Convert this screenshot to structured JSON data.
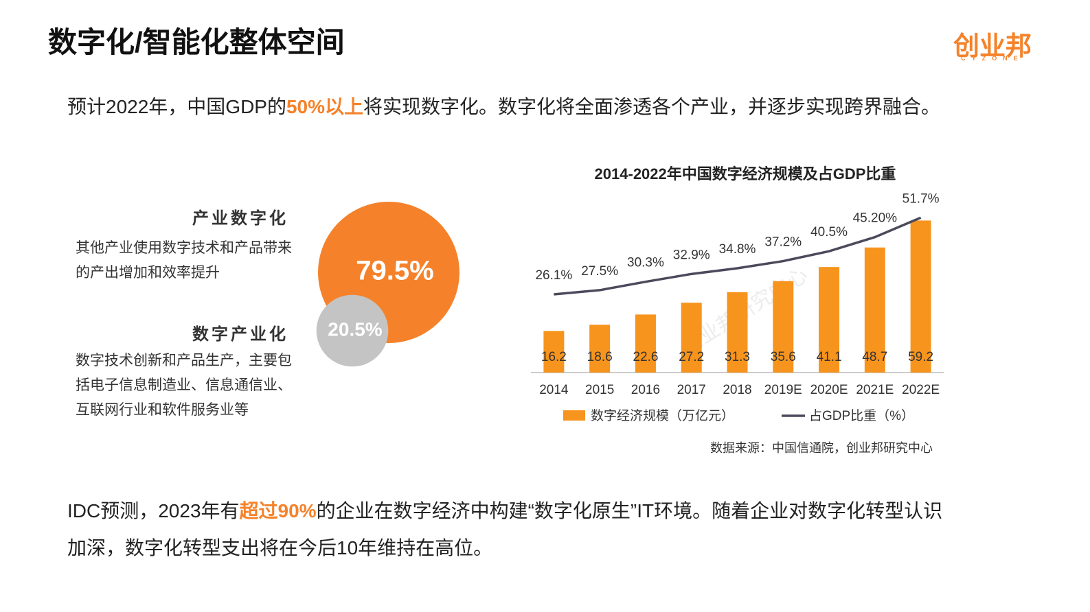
{
  "header": {
    "title": "数字化/智能化整体空间",
    "logo": {
      "name": "创业邦",
      "subname": "CYZONE"
    }
  },
  "intro": {
    "parts": [
      "预计2022年，中国GDP的",
      "50%以上",
      "将实现数字化。数字化将全面渗透各个产业，并逐步实现跨界融合。"
    ]
  },
  "chart_data": [
    {
      "type": "circles",
      "categories": [
        "产业数字化",
        "数字产业化"
      ],
      "descriptions": [
        "其他产业使用数字技术和产品带来的产出增加和效率提升",
        "数字技术创新和产品生产，主要包括电子信息制造业、信息通信业、互联网行业和软件服务业等"
      ],
      "values": [
        79.5,
        20.5
      ],
      "value_labels": [
        "79.5%",
        "20.5%"
      ],
      "colors": [
        "#f5822a",
        "#c4c4c4"
      ]
    },
    {
      "type": "bar-line",
      "title": "2014-2022年中国数字经济规模及占GDP比重",
      "categories": [
        "2014",
        "2015",
        "2016",
        "2017",
        "2018",
        "2019E",
        "2020E",
        "2021E",
        "2022E"
      ],
      "series": [
        {
          "name": "数字经济规模（万亿元）",
          "type": "bar",
          "color": "#f7941d",
          "values": [
            16.2,
            18.6,
            22.6,
            27.2,
            31.3,
            35.6,
            41.1,
            48.7,
            59.2
          ]
        },
        {
          "name": "占GDP比重（%）",
          "type": "line",
          "axis": "y2",
          "color": "#4b4a5c",
          "values": [
            26.1,
            27.5,
            30.3,
            32.9,
            34.8,
            37.2,
            40.5,
            45.2,
            51.7
          ],
          "value_labels": [
            "26.1%",
            "27.5%",
            "30.3%",
            "32.9%",
            "34.8%",
            "37.2%",
            "40.5%",
            "45.20%",
            "51.7%"
          ]
        }
      ],
      "ylim": [
        0,
        70
      ],
      "y2lim": [
        0,
        60
      ],
      "grid": false,
      "watermark": "创业邦研究中心",
      "source": "数据来源：中国信通院，创业邦研究中心"
    }
  ],
  "footer": {
    "parts": [
      "IDC预测，2023年有",
      "超过90%",
      "的企业在数字经济中构建“数字化原生”IT环境。随着企业对数字化转型认识加深，数字化转型支出将在今后10年维持在高位。"
    ]
  }
}
